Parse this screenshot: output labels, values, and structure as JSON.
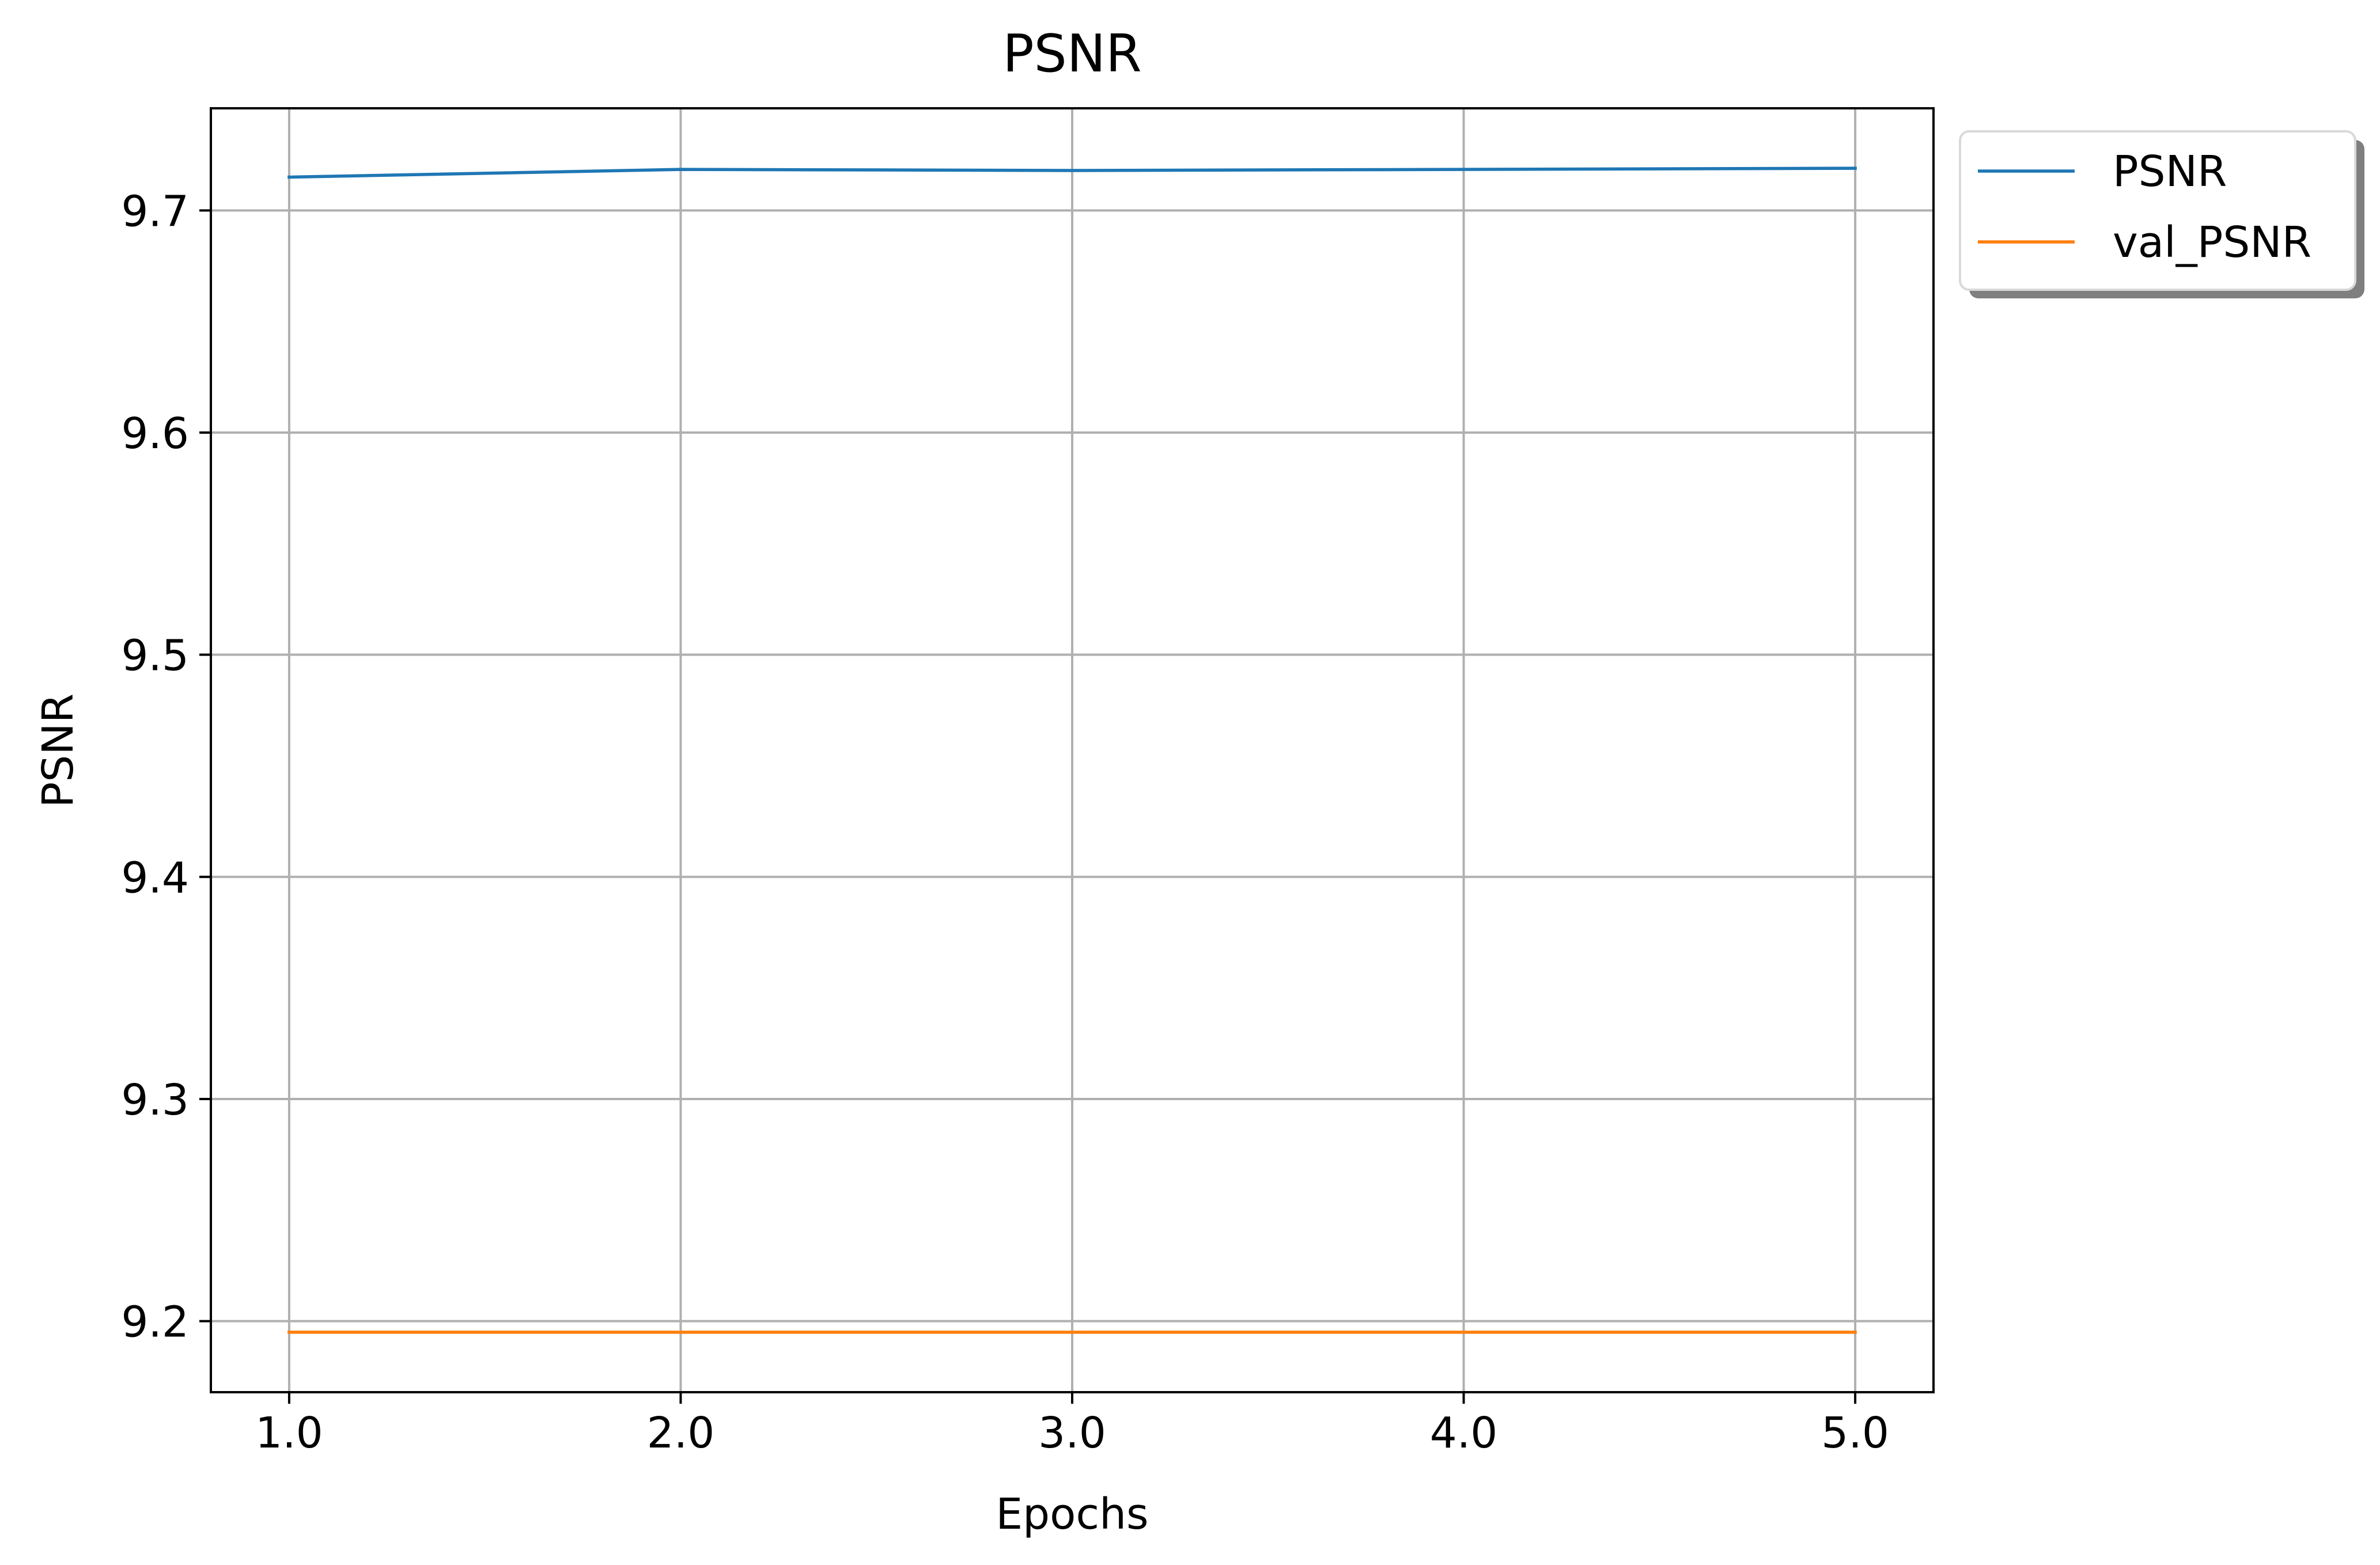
{
  "chart_data": {
    "type": "line",
    "title": "PSNR",
    "xlabel": "Epochs",
    "ylabel": "PSNR",
    "x": [
      1.0,
      2.0,
      3.0,
      4.0,
      5.0
    ],
    "x_tick_labels": [
      "1.0",
      "2.0",
      "3.0",
      "4.0",
      "5.0"
    ],
    "y_ticks": [
      9.2,
      9.3,
      9.4,
      9.5,
      9.6,
      9.7
    ],
    "y_tick_labels": [
      "9.2",
      "9.3",
      "9.4",
      "9.5",
      "9.6",
      "9.7"
    ],
    "xlim": [
      0.8,
      5.2
    ],
    "ylim": [
      9.168,
      9.746
    ],
    "grid": true,
    "legend_position": "outside upper right",
    "series": [
      {
        "name": "PSNR",
        "color": "#1f77b4",
        "values": [
          9.715,
          9.7185,
          9.718,
          9.7185,
          9.719
        ]
      },
      {
        "name": "val_PSNR",
        "color": "#ff7f0e",
        "values": [
          9.195,
          9.195,
          9.195,
          9.195,
          9.195
        ]
      }
    ]
  }
}
